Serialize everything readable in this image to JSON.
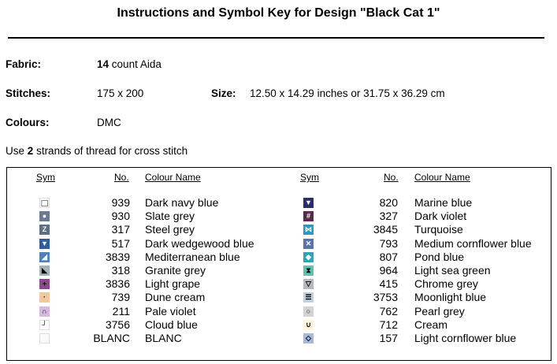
{
  "title": "Instructions and Symbol Key for Design \"Black Cat 1\"",
  "fabric": {
    "label": "Fabric:",
    "count": "14",
    "rest": "count Aida"
  },
  "stitches": {
    "label": "Stitches:",
    "value": "175 x 200"
  },
  "size": {
    "label": "Size:",
    "value": "12.50 x 14.29 inches or 31.75 x 36.29 cm"
  },
  "colours": {
    "label": "Colours:",
    "value": "DMC"
  },
  "instruction": {
    "pre": "Use",
    "strands": "2",
    "post": "strands of thread for cross stitch"
  },
  "headers": {
    "sym": "Sym",
    "no": "No.",
    "name": "Colour Name"
  },
  "left": [
    {
      "sym": "□",
      "bg": "#ffffff",
      "fg": "#000000",
      "no": "939",
      "name": "Dark navy blue"
    },
    {
      "sym": "●",
      "bg": "#6b7a8f",
      "fg": "#ffffff",
      "no": "930",
      "name": "Slate grey"
    },
    {
      "sym": "Z",
      "bg": "#5d6f80",
      "fg": "#ffffff",
      "no": "317",
      "name": "Steel grey"
    },
    {
      "sym": "▼",
      "bg": "#2f5f98",
      "fg": "#ffffff",
      "no": "517",
      "name": "Dark wedgewood blue"
    },
    {
      "sym": "◢",
      "bg": "#4f83b6",
      "fg": "#ffffff",
      "no": "3839",
      "name": "Mediterranean blue"
    },
    {
      "sym": "◣",
      "bg": "#a7b2b8",
      "fg": "#000000",
      "no": "318",
      "name": "Granite grey"
    },
    {
      "sym": "+",
      "bg": "#8b4a8c",
      "fg": "#000000",
      "no": "3836",
      "name": "Light grape"
    },
    {
      "sym": "·",
      "bg": "#f1c9a0",
      "fg": "#000000",
      "no": "739",
      "name": "Dune cream"
    },
    {
      "sym": "∩",
      "bg": "#d7b8e0",
      "fg": "#000000",
      "no": "211",
      "name": "Pale violet"
    },
    {
      "sym": "┘",
      "bg": "#ffffff",
      "fg": "#000000",
      "no": "3756",
      "name": "Cloud blue"
    },
    {
      "sym": "",
      "bg": "#fafafa",
      "fg": "#000000",
      "no": "BLANC",
      "name": "BLANC"
    }
  ],
  "right": [
    {
      "sym": "▼",
      "bg": "#2b2e6b",
      "fg": "#ffffff",
      "no": "820",
      "name": "Marine blue"
    },
    {
      "sym": "#",
      "bg": "#5a2a4e",
      "fg": "#ffffff",
      "no": "327",
      "name": "Dark violet"
    },
    {
      "sym": "⋈",
      "bg": "#1e9fc8",
      "fg": "#ffffff",
      "no": "3845",
      "name": "Turquoise"
    },
    {
      "sym": "✕",
      "bg": "#5a73a8",
      "fg": "#ffffff",
      "no": "793",
      "name": "Medium cornflower blue"
    },
    {
      "sym": "◆",
      "bg": "#33a3b8",
      "fg": "#ffffff",
      "no": "807",
      "name": "Pond blue"
    },
    {
      "sym": "⧗",
      "bg": "#5fc0b4",
      "fg": "#000000",
      "no": "964",
      "name": "Light sea green"
    },
    {
      "sym": "▽",
      "bg": "#b3b9be",
      "fg": "#000000",
      "no": "415",
      "name": "Chrome grey"
    },
    {
      "sym": "☰",
      "bg": "#bfd1e3",
      "fg": "#000000",
      "no": "3753",
      "name": "Moonlight blue"
    },
    {
      "sym": "○",
      "bg": "#d3d3d3",
      "fg": "#000000",
      "no": "762",
      "name": "Pearl grey"
    },
    {
      "sym": "∪",
      "bg": "#fff4dc",
      "fg": "#000000",
      "no": "712",
      "name": "Cream"
    },
    {
      "sym": "◇",
      "bg": "#a8b7e0",
      "fg": "#000000",
      "no": "157",
      "name": "Light cornflower blue"
    }
  ]
}
